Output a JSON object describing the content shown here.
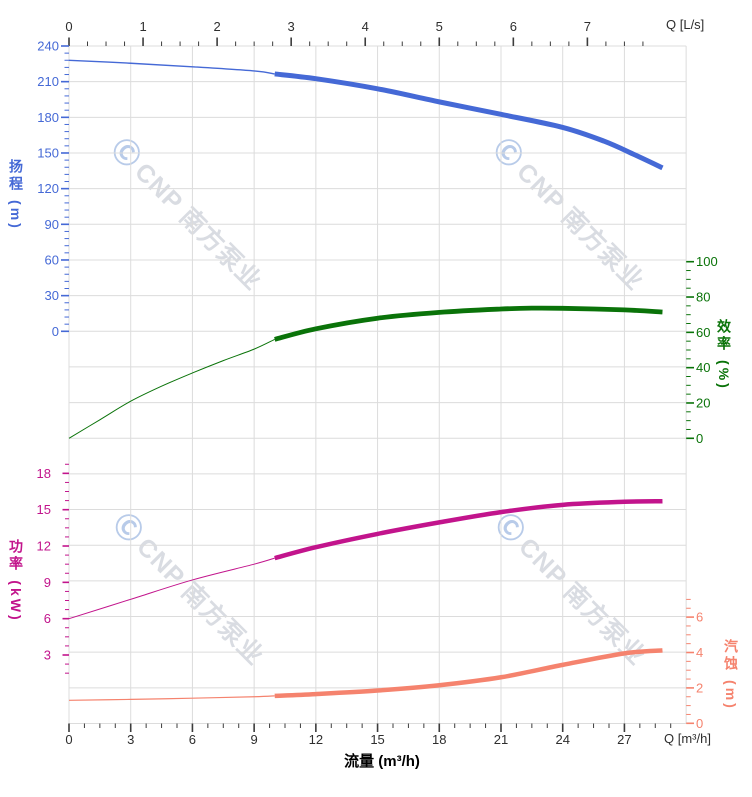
{
  "watermark": {
    "logo": "Ⓒ",
    "text": "CNP 南方泵业"
  },
  "chart_data": {
    "type": "line",
    "title": "",
    "x_axis_bottom": {
      "label": "Q [m³/h]",
      "axis_title": "流量 (m³/h)",
      "unit": "m³/h",
      "min": 0,
      "max": 30,
      "major_ticks": [
        0,
        3,
        6,
        9,
        12,
        15,
        18,
        21,
        24,
        27
      ],
      "minor_step": 0.75,
      "minor_max": 29.25
    },
    "x_axis_top": {
      "label": "Q [L/s]",
      "unit": "L/s",
      "min": 0,
      "max": 8.33,
      "major_ticks": [
        0,
        1,
        2,
        3,
        4,
        5,
        6,
        7
      ],
      "minor_step": 0.25,
      "minor_max": 7.75,
      "m3h_per_unit": 3.6
    },
    "y_axes": {
      "head": {
        "label": "扬程 (m)",
        "side": "left",
        "color": "#4569d6",
        "min": 0,
        "max": 240,
        "major_ticks": [
          240,
          210,
          180,
          150,
          120,
          90,
          60,
          30,
          0
        ],
        "major_step": 30,
        "minor_step": 6,
        "minor_min": 0,
        "minor_max": 240
      },
      "efficiency": {
        "label": "效率 (%)",
        "side": "right",
        "color": "#0a7309",
        "min": 0,
        "max": 100,
        "major_ticks": [
          100,
          80,
          60,
          40,
          20,
          0
        ],
        "major_step": 20,
        "minor_step": 5,
        "minor_min": 0,
        "minor_max": 100
      },
      "power": {
        "label": "功率 (kW)",
        "side": "left",
        "color": "#c2148c",
        "min": 0.7,
        "max": 18.9,
        "major_ticks": [
          18,
          15,
          12,
          9,
          6,
          3
        ],
        "major_step": 3,
        "minor_step": 0.75,
        "minor_min": 1.5,
        "minor_max": 18.75
      },
      "npsh": {
        "label": "汽蚀 (m)",
        "side": "right",
        "color": "#f5836e",
        "min": 0,
        "max": 7,
        "major_ticks": [
          6,
          4,
          2,
          0
        ],
        "major_step": 2,
        "minor_step": 0.5,
        "minor_min": 0,
        "minor_max": 7
      }
    },
    "duty_split_q": 10,
    "grid": true,
    "series": [
      {
        "name": "扬程",
        "en": "head",
        "axis": "head",
        "unit": "m",
        "color": "#4569d6",
        "points": [
          [
            0,
            228
          ],
          [
            3,
            225.5
          ],
          [
            6,
            222.5
          ],
          [
            9,
            219
          ],
          [
            10,
            216.5
          ],
          [
            12,
            212.5
          ],
          [
            15,
            204
          ],
          [
            18,
            193
          ],
          [
            21,
            182.5
          ],
          [
            24,
            171.5
          ],
          [
            26,
            160
          ],
          [
            27.5,
            148.5
          ],
          [
            28.85,
            137.5
          ]
        ]
      },
      {
        "name": "效率",
        "en": "efficiency",
        "axis": "efficiency",
        "unit": "%",
        "color": "#0a7309",
        "points": [
          [
            0,
            0
          ],
          [
            1.5,
            10.5
          ],
          [
            3,
            21
          ],
          [
            4.5,
            29.5
          ],
          [
            6,
            37
          ],
          [
            7.5,
            44
          ],
          [
            9,
            50.5
          ],
          [
            10,
            56
          ],
          [
            12,
            62
          ],
          [
            15,
            68
          ],
          [
            18,
            71.3
          ],
          [
            21,
            73.2
          ],
          [
            22.5,
            73.7
          ],
          [
            24,
            73.6
          ],
          [
            27,
            72.7
          ],
          [
            28.85,
            71.5
          ]
        ]
      },
      {
        "name": "功率",
        "en": "power",
        "axis": "power",
        "unit": "kW",
        "color": "#c2148c",
        "points": [
          [
            0,
            6
          ],
          [
            3,
            7.6
          ],
          [
            6,
            9.2
          ],
          [
            9,
            10.5
          ],
          [
            10,
            11
          ],
          [
            12,
            11.9
          ],
          [
            15,
            13
          ],
          [
            18,
            13.95
          ],
          [
            21,
            14.8
          ],
          [
            24,
            15.4
          ],
          [
            27,
            15.65
          ],
          [
            28.85,
            15.7
          ]
        ]
      },
      {
        "name": "汽蚀",
        "en": "npsh",
        "axis": "npsh",
        "unit": "m",
        "color": "#f5836e",
        "points": [
          [
            0,
            1.3
          ],
          [
            3,
            1.35
          ],
          [
            6,
            1.42
          ],
          [
            9,
            1.5
          ],
          [
            10,
            1.55
          ],
          [
            12,
            1.65
          ],
          [
            15,
            1.85
          ],
          [
            18,
            2.15
          ],
          [
            21,
            2.6
          ],
          [
            24,
            3.3
          ],
          [
            27,
            3.95
          ],
          [
            28.85,
            4.12
          ]
        ]
      }
    ]
  }
}
